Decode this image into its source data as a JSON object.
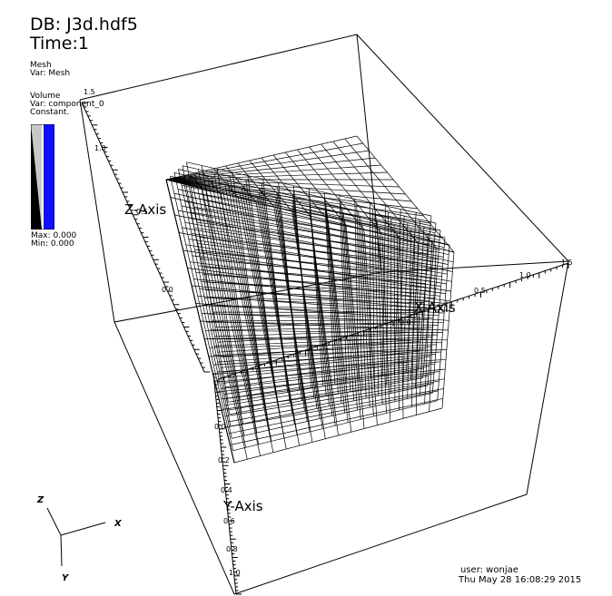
{
  "header": {
    "db_title": "DB: J3d.hdf5",
    "time_label": "Time:1"
  },
  "legend": {
    "mesh": {
      "title": "Mesh",
      "var": "Var: Mesh"
    },
    "volume": {
      "title": "Volume",
      "var": "Var: component_0",
      "mode": "Constant.",
      "max": "Max:  0.000",
      "min": "Min:  0.000",
      "colors": {
        "low": "#000000",
        "mid": "#c8c8c8",
        "high": "#1010ff"
      }
    }
  },
  "axes": {
    "z": {
      "title": "Z-Axis",
      "ticks": [
        "1.5",
        "1.0",
        "0.5",
        "0.0"
      ]
    },
    "x": {
      "title": "X-Axis",
      "ticks": [
        "1.0",
        "0.5",
        "0.0",
        "1.5"
      ]
    },
    "y": {
      "title": "Y-Axis",
      "ticks": [
        "0.0",
        "0.2",
        "0.4",
        "0.6",
        "0.8",
        "1.0"
      ]
    }
  },
  "triad": {
    "x": "X",
    "y": "Y",
    "z": "Z"
  },
  "footer": {
    "user": "user: wonjae",
    "timestamp": "Thu May 28 16:08:29 2015"
  }
}
